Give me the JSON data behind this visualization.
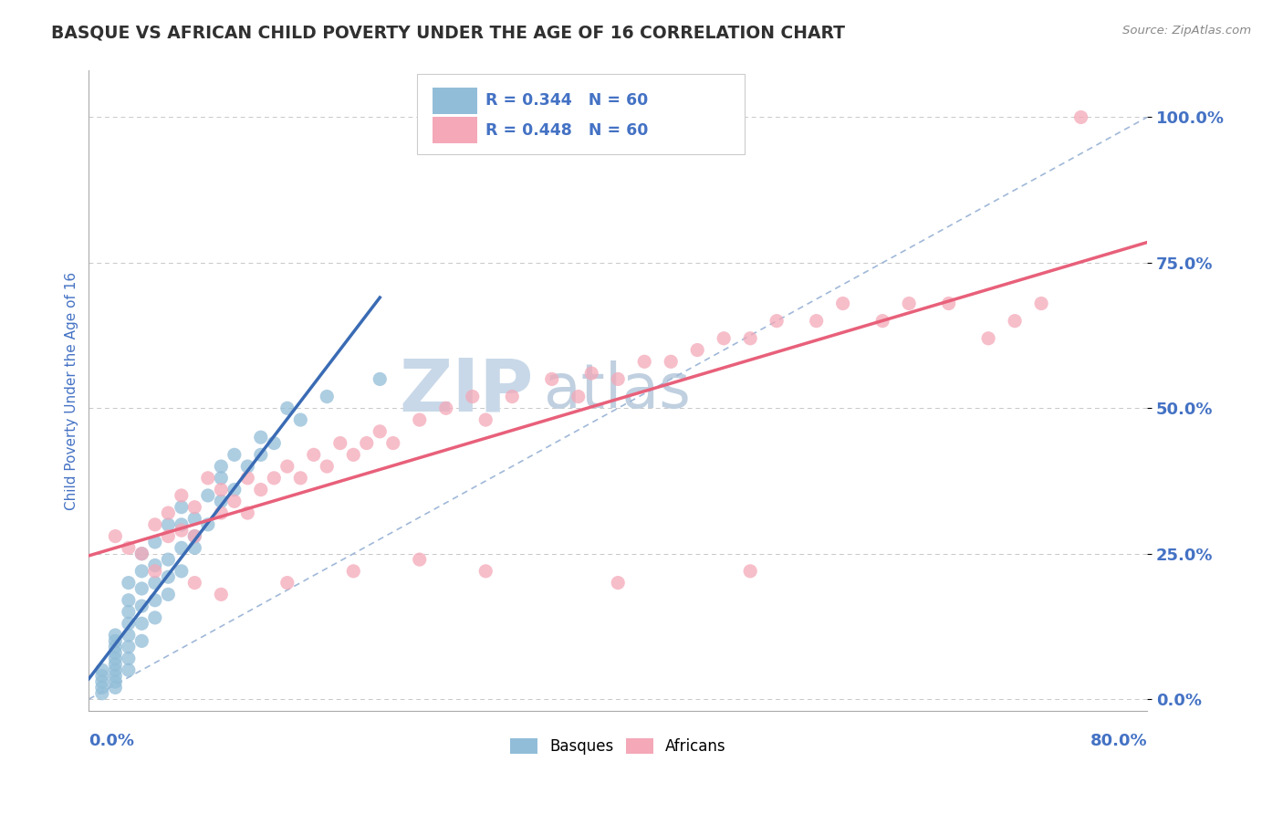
{
  "title": "BASQUE VS AFRICAN CHILD POVERTY UNDER THE AGE OF 16 CORRELATION CHART",
  "source": "Source: ZipAtlas.com",
  "ylabel": "Child Poverty Under the Age of 16",
  "xlim": [
    0.0,
    0.8
  ],
  "ylim": [
    -0.02,
    1.08
  ],
  "yticks": [
    0.0,
    0.25,
    0.5,
    0.75,
    1.0
  ],
  "ytick_labels": [
    "0.0%",
    "25.0%",
    "50.0%",
    "75.0%",
    "100.0%"
  ],
  "legend_basque_r": "R = 0.344",
  "legend_basque_n": "N = 60",
  "legend_african_r": "R = 0.448",
  "legend_african_n": "N = 60",
  "basque_color": "#92BDD8",
  "african_color": "#F4A8B8",
  "basque_line_color": "#3A6BB4",
  "african_line_color": "#E8607A",
  "diagonal_color": "#A0B8D8",
  "watermark_zip_color": "#C8D8E8",
  "watermark_atlas_color": "#C0D0E0",
  "title_color": "#303030",
  "tick_label_color": "#4472C4",
  "source_color": "#888888",
  "basque_x": [
    0.01,
    0.01,
    0.01,
    0.01,
    0.01,
    0.02,
    0.02,
    0.02,
    0.02,
    0.02,
    0.02,
    0.02,
    0.02,
    0.02,
    0.02,
    0.03,
    0.03,
    0.03,
    0.03,
    0.03,
    0.03,
    0.03,
    0.03,
    0.04,
    0.04,
    0.04,
    0.04,
    0.04,
    0.04,
    0.05,
    0.05,
    0.05,
    0.05,
    0.06,
    0.06,
    0.06,
    0.07,
    0.07,
    0.07,
    0.08,
    0.08,
    0.09,
    0.1,
    0.1,
    0.11,
    0.12,
    0.13,
    0.14,
    0.16,
    0.18,
    0.05,
    0.06,
    0.07,
    0.08,
    0.09,
    0.1,
    0.11,
    0.13,
    0.15,
    0.22
  ],
  "basque_y": [
    0.01,
    0.02,
    0.03,
    0.04,
    0.05,
    0.02,
    0.03,
    0.04,
    0.05,
    0.06,
    0.07,
    0.08,
    0.09,
    0.1,
    0.11,
    0.05,
    0.07,
    0.09,
    0.11,
    0.13,
    0.15,
    0.17,
    0.2,
    0.1,
    0.13,
    0.16,
    0.19,
    0.22,
    0.25,
    0.14,
    0.17,
    0.2,
    0.23,
    0.18,
    0.21,
    0.24,
    0.22,
    0.26,
    0.3,
    0.26,
    0.31,
    0.3,
    0.34,
    0.4,
    0.36,
    0.4,
    0.42,
    0.44,
    0.48,
    0.52,
    0.27,
    0.3,
    0.33,
    0.28,
    0.35,
    0.38,
    0.42,
    0.45,
    0.5,
    0.55
  ],
  "african_x": [
    0.02,
    0.03,
    0.04,
    0.05,
    0.06,
    0.06,
    0.07,
    0.07,
    0.08,
    0.08,
    0.09,
    0.1,
    0.1,
    0.11,
    0.12,
    0.12,
    0.13,
    0.14,
    0.15,
    0.16,
    0.17,
    0.18,
    0.19,
    0.2,
    0.21,
    0.22,
    0.23,
    0.25,
    0.27,
    0.29,
    0.3,
    0.32,
    0.35,
    0.37,
    0.38,
    0.4,
    0.42,
    0.44,
    0.46,
    0.48,
    0.5,
    0.52,
    0.55,
    0.57,
    0.6,
    0.62,
    0.65,
    0.68,
    0.7,
    0.72,
    0.05,
    0.08,
    0.1,
    0.15,
    0.2,
    0.25,
    0.3,
    0.4,
    0.5,
    0.75
  ],
  "african_y": [
    0.28,
    0.26,
    0.25,
    0.3,
    0.32,
    0.28,
    0.35,
    0.29,
    0.33,
    0.28,
    0.38,
    0.32,
    0.36,
    0.34,
    0.38,
    0.32,
    0.36,
    0.38,
    0.4,
    0.38,
    0.42,
    0.4,
    0.44,
    0.42,
    0.44,
    0.46,
    0.44,
    0.48,
    0.5,
    0.52,
    0.48,
    0.52,
    0.55,
    0.52,
    0.56,
    0.55,
    0.58,
    0.58,
    0.6,
    0.62,
    0.62,
    0.65,
    0.65,
    0.68,
    0.65,
    0.68,
    0.68,
    0.62,
    0.65,
    0.68,
    0.22,
    0.2,
    0.18,
    0.2,
    0.22,
    0.24,
    0.22,
    0.2,
    0.22,
    1.0
  ]
}
